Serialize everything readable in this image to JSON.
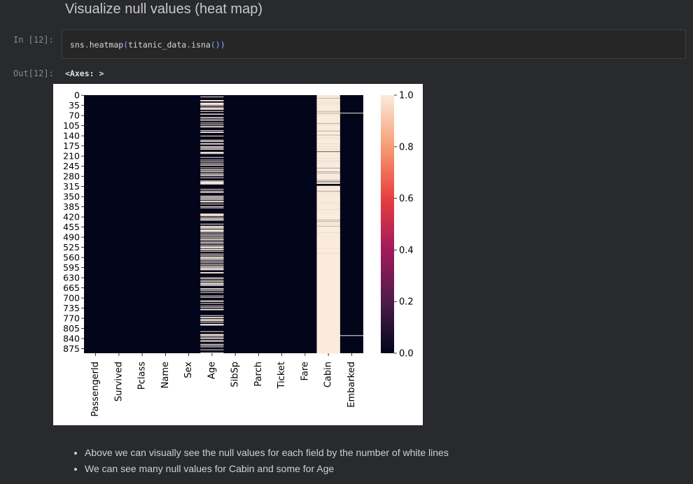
{
  "notebook": {
    "heading": "Visualize null values (heat map)",
    "input_prompt": "In [12]:",
    "code": {
      "parts": [
        "sns",
        ".",
        "heatmap",
        "(",
        "titanic_data",
        ".",
        "isna",
        "()",
        ")"
      ]
    },
    "output_prompt": "Out[12]:",
    "output_text": "<Axes: >",
    "notes": [
      "Above we can visually see the null values for each field by the number of white lines",
      "We can see many null values for Cabin and some for Age"
    ]
  },
  "chart_data": {
    "type": "heatmap",
    "columns": [
      "PassengerId",
      "Survived",
      "Pclass",
      "Name",
      "Sex",
      "Age",
      "SibSp",
      "Parch",
      "Ticket",
      "Fare",
      "Cabin",
      "Embarked"
    ],
    "row_tick_labels": [
      "0",
      "35",
      "70",
      "105",
      "140",
      "175",
      "210",
      "245",
      "280",
      "315",
      "350",
      "385",
      "420",
      "455",
      "490",
      "525",
      "560",
      "595",
      "630",
      "665",
      "700",
      "735",
      "770",
      "805",
      "840",
      "875"
    ],
    "row_tick_values": [
      0,
      35,
      70,
      105,
      140,
      175,
      210,
      245,
      280,
      315,
      350,
      385,
      420,
      455,
      490,
      525,
      560,
      595,
      630,
      665,
      700,
      735,
      770,
      805,
      840,
      875
    ],
    "n_rows": 891,
    "missing_rows": {
      "Age": [
        5,
        17,
        19,
        26,
        28,
        29,
        31,
        32,
        36,
        42,
        45,
        46,
        47,
        48,
        55,
        64,
        65,
        76,
        77,
        82,
        87,
        95,
        101,
        107,
        109,
        121,
        126,
        128,
        140,
        154,
        158,
        159,
        166,
        168,
        176,
        180,
        181,
        185,
        186,
        196,
        198,
        201,
        214,
        223,
        229,
        235,
        240,
        241,
        250,
        256,
        260,
        264,
        270,
        274,
        277,
        284,
        295,
        298,
        300,
        301,
        303,
        304,
        306,
        324,
        330,
        334,
        335,
        347,
        351,
        354,
        358,
        359,
        364,
        367,
        368,
        375,
        384,
        388,
        409,
        410,
        411,
        413,
        415,
        420,
        425,
        428,
        431,
        444,
        451,
        454,
        457,
        459,
        464,
        466,
        468,
        470,
        475,
        481,
        485,
        490,
        495,
        497,
        502,
        507,
        511,
        517,
        522,
        524,
        527,
        531,
        533,
        538,
        547,
        552,
        557,
        560,
        563,
        564,
        568,
        573,
        578,
        584,
        589,
        593,
        596,
        598,
        601,
        602,
        611,
        612,
        613,
        629,
        633,
        639,
        643,
        648,
        650,
        653,
        656,
        667,
        669,
        674,
        680,
        692,
        697,
        709,
        711,
        718,
        727,
        732,
        738,
        739,
        740,
        760,
        766,
        768,
        773,
        776,
        778,
        783,
        790,
        792,
        793,
        815,
        825,
        826,
        828,
        832,
        837,
        839,
        846,
        849,
        859,
        863,
        868,
        878,
        888
      ],
      "Cabin": [
        0,
        2,
        4,
        5,
        7,
        8,
        9,
        12,
        13,
        14,
        15,
        16,
        17,
        19,
        20,
        22,
        24,
        25,
        26,
        28,
        29,
        30,
        32,
        33,
        34,
        35,
        36,
        37,
        38,
        39,
        40,
        41,
        42,
        43,
        44,
        45,
        46,
        47,
        48,
        49,
        50,
        51,
        53,
        56,
        57,
        58,
        59,
        60,
        63,
        64,
        65,
        67,
        68,
        69,
        70,
        71,
        72,
        73,
        74,
        76,
        77,
        78,
        79,
        80,
        81,
        82,
        83,
        84,
        85,
        86,
        87,
        89,
        90,
        91,
        93,
        94,
        95,
        98,
        99,
        100,
        101,
        103,
        104,
        105,
        106,
        107,
        108,
        109,
        111,
        112,
        113,
        114,
        115,
        116,
        117,
        119,
        120,
        121,
        122,
        125,
        126,
        127,
        129,
        130,
        131,
        132,
        133,
        134,
        135,
        138,
        140,
        141,
        142,
        143,
        144,
        145,
        146,
        147,
        149,
        150,
        152,
        153,
        154,
        155,
        156,
        157,
        158,
        159,
        160,
        161,
        162,
        163,
        164,
        165,
        167,
        168,
        169,
        171,
        172,
        173,
        175,
        176,
        178,
        179,
        180,
        181,
        182,
        184,
        186,
        187,
        188,
        189,
        190,
        191,
        192,
        196,
        197,
        198,
        199,
        200,
        201,
        202,
        203,
        204,
        206,
        207,
        208,
        210,
        211,
        212,
        213,
        214,
        216,
        217,
        219,
        220,
        221,
        222,
        223,
        225,
        226,
        227,
        228,
        229,
        231,
        232,
        233,
        234,
        235,
        236,
        237,
        238,
        239,
        240,
        241,
        242,
        243,
        244,
        246,
        247,
        249,
        250,
        253,
        254,
        255,
        256,
        258,
        259,
        260,
        261,
        264,
        265,
        266,
        267,
        270,
        271,
        272,
        274,
        276,
        277,
        278,
        279,
        280,
        281,
        282,
        283,
        285,
        286,
        287,
        288,
        289,
        290,
        293,
        294,
        295,
        296,
        300,
        301,
        302,
        304,
        313,
        314,
        315,
        316,
        317,
        318,
        320,
        321,
        322,
        323,
        324,
        326,
        327,
        328,
        330,
        333,
        334,
        335,
        337,
        339,
        341,
        342,
        343,
        344,
        345,
        346,
        347,
        348,
        349,
        350,
        352,
        353,
        354,
        355,
        356,
        357,
        358,
        359,
        360,
        361,
        362,
        363,
        364,
        365,
        366,
        367,
        368,
        369,
        371,
        372,
        373,
        374,
        375,
        376,
        378,
        379,
        380,
        381,
        382,
        383,
        385,
        386,
        387,
        388,
        389,
        391,
        392,
        394,
        395,
        396,
        397,
        398,
        399,
        400,
        401,
        402,
        403,
        404,
        405,
        406,
        407,
        408,
        409,
        410,
        411,
        412,
        414,
        415,
        416,
        417,
        418,
        419,
        420,
        421,
        422,
        423,
        424,
        425,
        426,
        427,
        428,
        431,
        432,
        433,
        436,
        437,
        438,
        440,
        441,
        442,
        443,
        444,
        446,
        447,
        448,
        450,
        451,
        454,
        455,
        456,
        457,
        458,
        459,
        460,
        461,
        462,
        463,
        464,
        465,
        466,
        467,
        468,
        469,
        470,
        471,
        473,
        475,
        476,
        477,
        478,
        479,
        480,
        481,
        482,
        483,
        484,
        485,
        486,
        487,
        488,
        489,
        490,
        491,
        492,
        493,
        494,
        495,
        496,
        497,
        498,
        499,
        500,
        501,
        502,
        503,
        504,
        505,
        506,
        507,
        508,
        509,
        510,
        511,
        512,
        513,
        514,
        515,
        516,
        517,
        518,
        519,
        520,
        521,
        522,
        523,
        524,
        525,
        526,
        527,
        529,
        530,
        531,
        532,
        533,
        534,
        535,
        536,
        537,
        538,
        539,
        541,
        542,
        543,
        544,
        546,
        547,
        548,
        549,
        550,
        551,
        552,
        553,
        554,
        555,
        556,
        557,
        558,
        559,
        560,
        561,
        562,
        563,
        564,
        565,
        566,
        567,
        568,
        569,
        570,
        571,
        572,
        573,
        574,
        575,
        576,
        577,
        578,
        579,
        580,
        581,
        582,
        583,
        584,
        585,
        586,
        587,
        588,
        589,
        590,
        591,
        592,
        593,
        594,
        595,
        596,
        597,
        598,
        599,
        600,
        601,
        602,
        603,
        604,
        605,
        606,
        607,
        608,
        609,
        610,
        611,
        612,
        613,
        614,
        615,
        616,
        617,
        618,
        619,
        620,
        621,
        622,
        623,
        625,
        626,
        627,
        628,
        629,
        630,
        631,
        632,
        633,
        634,
        635,
        636,
        637,
        638,
        639,
        640,
        641,
        642,
        643,
        644,
        645,
        646,
        647,
        648,
        649,
        650,
        651,
        652,
        653,
        654,
        655,
        656,
        657,
        658,
        659,
        660,
        661,
        662,
        663,
        664,
        665,
        666,
        667,
        668,
        669,
        670,
        671,
        672,
        673,
        674,
        675,
        676,
        677,
        678,
        679,
        680,
        681,
        682,
        683,
        684,
        685,
        686,
        687,
        688,
        689,
        690,
        691,
        692,
        693,
        694,
        695,
        696,
        697,
        698,
        699,
        700,
        701,
        702,
        703,
        704,
        705,
        706,
        707,
        708,
        709,
        710,
        711,
        712,
        713,
        714,
        715,
        716,
        717,
        718,
        719,
        720,
        721,
        722,
        723,
        724,
        725,
        726,
        727,
        728,
        729,
        730,
        731,
        732,
        733,
        734,
        735,
        736,
        737,
        738,
        739,
        740,
        741,
        742,
        743,
        744,
        745,
        746,
        747,
        748,
        749,
        750,
        751,
        752,
        753,
        754,
        755,
        756,
        757,
        758,
        759,
        760,
        761,
        762,
        763,
        764,
        765,
        766,
        767,
        768,
        769,
        770,
        771,
        772,
        773,
        774,
        775,
        776,
        777,
        778,
        779,
        780,
        781,
        782,
        783,
        784,
        785,
        786,
        787,
        788,
        789,
        790,
        791,
        792,
        793,
        794,
        795,
        796,
        797,
        798,
        799,
        800,
        801,
        802,
        803,
        804,
        805,
        806,
        807,
        808,
        809,
        810,
        811,
        812,
        813,
        814,
        815,
        816,
        817,
        818,
        819,
        820,
        821,
        822,
        823,
        824,
        825,
        826,
        827,
        828,
        829,
        830,
        831,
        832,
        833,
        834,
        835,
        836,
        837,
        838,
        839,
        840,
        841,
        842,
        843,
        844,
        845,
        846,
        847,
        848,
        849,
        850,
        851,
        852,
        853,
        854,
        855,
        856,
        857,
        858,
        859,
        860,
        861,
        862,
        863,
        864,
        865,
        866,
        867,
        868,
        869,
        870,
        871,
        872,
        873,
        874,
        875,
        876,
        877,
        878,
        879,
        880,
        881,
        882,
        883,
        884,
        885,
        886,
        887,
        888,
        889,
        890
      ],
      "Embarked": [
        61,
        829
      ]
    },
    "colorbar": {
      "ticks": [
        0.0,
        0.2,
        0.4,
        0.6,
        0.8,
        1.0
      ],
      "tick_labels": [
        "0.0",
        "0.2",
        "0.4",
        "0.6",
        "0.8",
        "1.0"
      ],
      "range": [
        0,
        1
      ],
      "colors": [
        "#03051a",
        "#4c1d4b",
        "#a11a5b",
        "#e83f3f",
        "#f69c73",
        "#faebdd"
      ]
    },
    "colors": {
      "present": "#03051a",
      "missing": "#faebdd"
    }
  }
}
